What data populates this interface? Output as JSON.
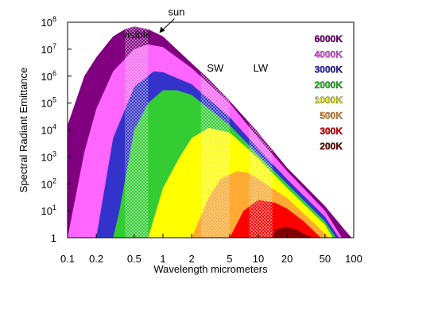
{
  "chart_data": {
    "type": "area",
    "title": "",
    "xlabel": "Wavelength  micrometers",
    "ylabel": "Spectral Radiant Emittance",
    "x_scale": "log",
    "y_scale": "log",
    "xlim": [
      0.1,
      100
    ],
    "ylim": [
      1,
      100000000
    ],
    "grid": false,
    "legend_placement": "top-right",
    "x_ticks": [
      {
        "value": 0.1,
        "label": "0.1"
      },
      {
        "value": 0.2,
        "label": "0.2"
      },
      {
        "value": 0.5,
        "label": "0.5"
      },
      {
        "value": 1,
        "label": "1"
      },
      {
        "value": 2,
        "label": "2"
      },
      {
        "value": 5,
        "label": "5"
      },
      {
        "value": 10,
        "label": "10"
      },
      {
        "value": 20,
        "label": "20"
      },
      {
        "value": 50,
        "label": "50"
      },
      {
        "value": 100,
        "label": "100"
      }
    ],
    "y_ticks": [
      {
        "value": 1,
        "base": "1",
        "exp": ""
      },
      {
        "value": 10,
        "base": "10",
        "exp": "1"
      },
      {
        "value": 100,
        "base": "10",
        "exp": "2"
      },
      {
        "value": 1000,
        "base": "10",
        "exp": "3"
      },
      {
        "value": 10000,
        "base": "10",
        "exp": "4"
      },
      {
        "value": 100000,
        "base": "10",
        "exp": "5"
      },
      {
        "value": 1000000,
        "base": "10",
        "exp": "6"
      },
      {
        "value": 10000000,
        "base": "10",
        "exp": "7"
      },
      {
        "value": 100000000,
        "base": "10",
        "exp": "8"
      }
    ],
    "series": [
      {
        "name": "6000K",
        "color": "#800080",
        "points": [
          [
            0.1,
            15000
          ],
          [
            0.15,
            1000000
          ],
          [
            0.2,
            5000000
          ],
          [
            0.3,
            30000000
          ],
          [
            0.4,
            55000000
          ],
          [
            0.5,
            70000000
          ],
          [
            0.7,
            55000000
          ],
          [
            1,
            30000000
          ],
          [
            2,
            3000000
          ],
          [
            3,
            800000
          ],
          [
            5,
            120000
          ],
          [
            10,
            8000
          ],
          [
            20,
            400
          ],
          [
            50,
            15
          ],
          [
            80,
            2
          ],
          [
            95,
            1
          ]
        ]
      },
      {
        "name": "4000K",
        "color": "#ff66ff",
        "points": [
          [
            0.1,
            1
          ],
          [
            0.15,
            1500
          ],
          [
            0.2,
            60000
          ],
          [
            0.3,
            1500000
          ],
          [
            0.5,
            10000000
          ],
          [
            0.7,
            15000000
          ],
          [
            1,
            12000000
          ],
          [
            2,
            2000000
          ],
          [
            5,
            100000
          ],
          [
            10,
            5000
          ],
          [
            20,
            300
          ],
          [
            50,
            10
          ],
          [
            75,
            1
          ]
        ]
      },
      {
        "name": "3000K",
        "color": "#3333cc",
        "points": [
          [
            0.2,
            1
          ],
          [
            0.3,
            5000
          ],
          [
            0.5,
            400000
          ],
          [
            0.8,
            1500000
          ],
          [
            1,
            1400000
          ],
          [
            2,
            500000
          ],
          [
            5,
            30000
          ],
          [
            10,
            2000
          ],
          [
            20,
            150
          ],
          [
            50,
            6
          ],
          [
            70,
            1
          ]
        ]
      },
      {
        "name": "2000K",
        "color": "#33cc33",
        "points": [
          [
            0.3,
            1
          ],
          [
            0.35,
            10
          ],
          [
            0.5,
            10000
          ],
          [
            0.7,
            100000
          ],
          [
            1,
            300000
          ],
          [
            1.4,
            300000
          ],
          [
            2,
            200000
          ],
          [
            5,
            15000
          ],
          [
            10,
            1200
          ],
          [
            20,
            100
          ],
          [
            50,
            4
          ],
          [
            65,
            1
          ]
        ]
      },
      {
        "name": "1000K",
        "color": "#ffff00",
        "points": [
          [
            0.7,
            1
          ],
          [
            1,
            70
          ],
          [
            1.5,
            1000
          ],
          [
            2,
            5000
          ],
          [
            3,
            12000
          ],
          [
            5,
            8000
          ],
          [
            10,
            900
          ],
          [
            20,
            70
          ],
          [
            50,
            3
          ],
          [
            60,
            1
          ]
        ]
      },
      {
        "name": "500K",
        "color": "#ffaa33",
        "points": [
          [
            2,
            1
          ],
          [
            3,
            30
          ],
          [
            4,
            150
          ],
          [
            6,
            300
          ],
          [
            8,
            250
          ],
          [
            10,
            150
          ],
          [
            20,
            30
          ],
          [
            40,
            3
          ],
          [
            55,
            1
          ]
        ]
      },
      {
        "name": "300K",
        "color": "#ff0000",
        "points": [
          [
            5,
            1
          ],
          [
            7,
            10
          ],
          [
            10,
            25
          ],
          [
            15,
            20
          ],
          [
            20,
            12
          ],
          [
            30,
            4
          ],
          [
            45,
            1
          ]
        ]
      },
      {
        "name": "200K",
        "color": "#800000",
        "points": [
          [
            14,
            1
          ],
          [
            15,
            2
          ],
          [
            20,
            2.5
          ],
          [
            25,
            2
          ],
          [
            30,
            1.4
          ],
          [
            37,
            1
          ]
        ]
      }
    ],
    "bands": [
      {
        "label": "visible",
        "range": [
          0.4,
          0.7
        ]
      },
      {
        "label": "SW",
        "range": [
          2.5,
          5
        ]
      },
      {
        "label": "LW",
        "range": [
          8,
          14
        ]
      }
    ],
    "annotations": [
      {
        "text": "sun",
        "target": [
          0.9,
          40000000
        ]
      }
    ]
  }
}
